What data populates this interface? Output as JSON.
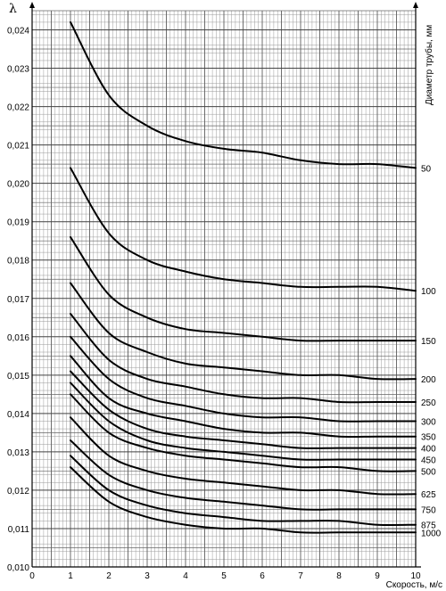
{
  "chart_data": {
    "type": "line",
    "title": "",
    "xlabel": "Скорость, м/с",
    "ylabel": "λ",
    "series_axis_label": "Диаметр трубы, мм",
    "xlim": [
      0,
      10
    ],
    "ylim": [
      0.01,
      0.0245
    ],
    "grid": true,
    "x_ticks": [
      "0",
      "1",
      "2",
      "3",
      "4",
      "5",
      "6",
      "7",
      "8",
      "9",
      "10"
    ],
    "y_ticks": [
      "0,010",
      "0,011",
      "0,012",
      "0,013",
      "0,014",
      "0,015",
      "0,016",
      "0,017",
      "0,018",
      "0,019",
      "0,020",
      "0,021",
      "0,022",
      "0,023",
      "0,024"
    ],
    "y_tick_values": [
      0.01,
      0.011,
      0.012,
      0.013,
      0.014,
      0.015,
      0.016,
      0.017,
      0.018,
      0.019,
      0.02,
      0.021,
      0.022,
      0.023,
      0.024
    ],
    "x": [
      1,
      2,
      3,
      4,
      5,
      6,
      7,
      8,
      9,
      10
    ],
    "series": [
      {
        "name": "50",
        "values": [
          0.0242,
          0.0223,
          0.0215,
          0.0211,
          0.0209,
          0.0208,
          0.0206,
          0.0205,
          0.0205,
          0.0204
        ]
      },
      {
        "name": "100",
        "values": [
          0.0204,
          0.0187,
          0.018,
          0.0177,
          0.0175,
          0.0174,
          0.0173,
          0.0173,
          0.0173,
          0.0172
        ]
      },
      {
        "name": "150",
        "values": [
          0.0186,
          0.0171,
          0.0165,
          0.0162,
          0.0161,
          0.016,
          0.0159,
          0.0159,
          0.0159,
          0.0159
        ]
      },
      {
        "name": "200",
        "values": [
          0.0174,
          0.0161,
          0.0156,
          0.0153,
          0.0152,
          0.0151,
          0.015,
          0.015,
          0.0149,
          0.0149
        ]
      },
      {
        "name": "250",
        "values": [
          0.0166,
          0.0154,
          0.0149,
          0.0147,
          0.0145,
          0.0144,
          0.0144,
          0.0143,
          0.0143,
          0.0143
        ]
      },
      {
        "name": "300",
        "values": [
          0.016,
          0.0149,
          0.0144,
          0.0142,
          0.014,
          0.0139,
          0.0139,
          0.0138,
          0.0138,
          0.0138
        ]
      },
      {
        "name": "350",
        "values": [
          0.0155,
          0.0144,
          0.014,
          0.0138,
          0.0136,
          0.0135,
          0.0135,
          0.0134,
          0.0134,
          0.0134
        ]
      },
      {
        "name": "400",
        "values": [
          0.0151,
          0.0141,
          0.0136,
          0.0134,
          0.0133,
          0.0132,
          0.0131,
          0.0131,
          0.0131,
          0.0131
        ]
      },
      {
        "name": "450",
        "values": [
          0.0148,
          0.0138,
          0.0133,
          0.0131,
          0.013,
          0.0129,
          0.0128,
          0.0128,
          0.0128,
          0.0128
        ]
      },
      {
        "name": "500",
        "values": [
          0.0145,
          0.0135,
          0.0131,
          0.0129,
          0.0128,
          0.0127,
          0.0126,
          0.0126,
          0.0125,
          0.0125
        ]
      },
      {
        "name": "625",
        "values": [
          0.0139,
          0.0129,
          0.0125,
          0.0123,
          0.0122,
          0.0121,
          0.012,
          0.012,
          0.0119,
          0.0119
        ]
      },
      {
        "name": "750",
        "values": [
          0.0133,
          0.0124,
          0.012,
          0.0118,
          0.0117,
          0.0116,
          0.0115,
          0.0115,
          0.0115,
          0.0115
        ]
      },
      {
        "name": "875",
        "values": [
          0.0129,
          0.012,
          0.0116,
          0.0114,
          0.0113,
          0.0112,
          0.0112,
          0.0112,
          0.0111,
          0.0111
        ]
      },
      {
        "name": "1000",
        "values": [
          0.0126,
          0.0117,
          0.0113,
          0.0111,
          0.011,
          0.011,
          0.0109,
          0.0109,
          0.0109,
          0.0109
        ]
      }
    ]
  }
}
